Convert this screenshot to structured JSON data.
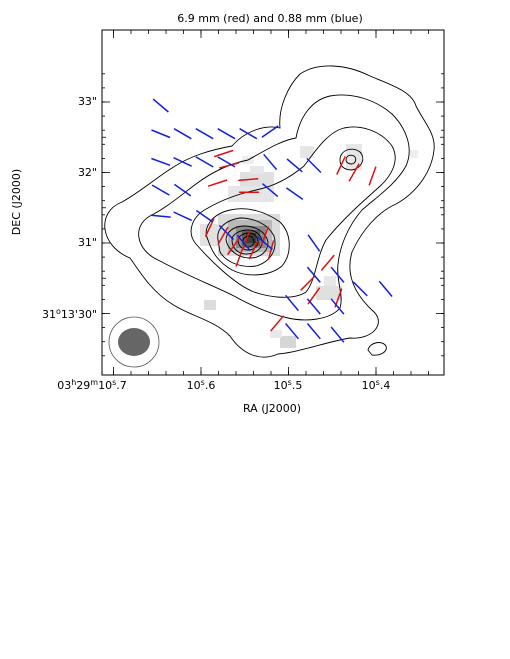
{
  "chart_data": {
    "type": "scatter",
    "title": "6.9 mm (red) and 0.88 mm (blue)",
    "xlabel": "RA (J2000)",
    "ylabel": "DEC (J2000)",
    "x_ticks": [
      {
        "label": "03h29m10s.7",
        "parts": [
          "03",
          "h",
          "29",
          "m",
          "10",
          "s",
          ".7"
        ]
      },
      {
        "label": "10s.6",
        "parts": [
          "10",
          "s",
          ".6"
        ]
      },
      {
        "label": "10s.5",
        "parts": [
          "10",
          "s",
          ".5"
        ]
      },
      {
        "label": "10s.4",
        "parts": [
          "10",
          "s",
          ".4"
        ]
      }
    ],
    "y_ticks": [
      {
        "label": "31°13'30\"",
        "parts": [
          "31",
          "o",
          "13'30\""
        ]
      },
      {
        "label": "31\"",
        "parts": [
          "31\""
        ]
      },
      {
        "label": "32\"",
        "parts": [
          "32\""
        ]
      },
      {
        "label": "33\"",
        "parts": [
          "33\""
        ]
      }
    ],
    "colors": {
      "red": "#e01010",
      "blue": "#1020e0",
      "contour": "#000000",
      "beam": "#666666"
    },
    "red_vectors": [
      {
        "ra": 10.574,
        "dec": 32.27,
        "pa": 72
      },
      {
        "ra": 10.568,
        "dec": 32.1,
        "pa": 75
      },
      {
        "ra": 10.546,
        "dec": 31.9,
        "pa": 85
      },
      {
        "ra": 10.581,
        "dec": 31.85,
        "pa": 72
      },
      {
        "ra": 10.545,
        "dec": 31.72,
        "pa": 90
      },
      {
        "ra": 10.59,
        "dec": 31.22,
        "pa": 25
      },
      {
        "ra": 10.575,
        "dec": 31.1,
        "pa": 30
      },
      {
        "ra": 10.563,
        "dec": 30.95,
        "pa": 35
      },
      {
        "ra": 10.548,
        "dec": 31.05,
        "pa": 20
      },
      {
        "ra": 10.54,
        "dec": 30.9,
        "pa": 25
      },
      {
        "ra": 10.556,
        "dec": 30.8,
        "pa": 20
      },
      {
        "ra": 10.527,
        "dec": 31.1,
        "pa": 20
      },
      {
        "ra": 10.52,
        "dec": 30.9,
        "pa": 15
      },
      {
        "ra": 10.44,
        "dec": 32.1,
        "pa": 25
      },
      {
        "ra": 10.425,
        "dec": 32.0,
        "pa": 30
      },
      {
        "ra": 10.404,
        "dec": 31.95,
        "pa": 20
      },
      {
        "ra": 10.455,
        "dec": 30.72,
        "pa": 40
      },
      {
        "ra": 10.478,
        "dec": 30.43,
        "pa": 45
      },
      {
        "ra": 10.471,
        "dec": 30.25,
        "pa": 35
      },
      {
        "ra": 10.443,
        "dec": 30.22,
        "pa": 20
      },
      {
        "ra": 10.513,
        "dec": 29.86,
        "pa": 40
      }
    ],
    "blue_vectors": [
      {
        "ra": 10.646,
        "dec": 32.95,
        "pa": 130
      },
      {
        "ra": 10.646,
        "dec": 32.55,
        "pa": 112
      },
      {
        "ra": 10.621,
        "dec": 32.55,
        "pa": 120
      },
      {
        "ra": 10.596,
        "dec": 32.55,
        "pa": 120
      },
      {
        "ra": 10.571,
        "dec": 32.55,
        "pa": 120
      },
      {
        "ra": 10.546,
        "dec": 32.55,
        "pa": 120
      },
      {
        "ra": 10.521,
        "dec": 32.58,
        "pa": 55
      },
      {
        "ra": 10.646,
        "dec": 32.15,
        "pa": 110
      },
      {
        "ra": 10.621,
        "dec": 32.15,
        "pa": 115
      },
      {
        "ra": 10.596,
        "dec": 32.15,
        "pa": 120
      },
      {
        "ra": 10.571,
        "dec": 32.15,
        "pa": 120
      },
      {
        "ra": 10.521,
        "dec": 32.15,
        "pa": 140
      },
      {
        "ra": 10.493,
        "dec": 32.1,
        "pa": 130
      },
      {
        "ra": 10.471,
        "dec": 32.1,
        "pa": 135
      },
      {
        "ra": 10.646,
        "dec": 31.75,
        "pa": 120
      },
      {
        "ra": 10.621,
        "dec": 31.75,
        "pa": 125
      },
      {
        "ra": 10.521,
        "dec": 31.75,
        "pa": 130
      },
      {
        "ra": 10.493,
        "dec": 31.7,
        "pa": 125
      },
      {
        "ra": 10.646,
        "dec": 31.38,
        "pa": 95
      },
      {
        "ra": 10.621,
        "dec": 31.38,
        "pa": 115
      },
      {
        "ra": 10.596,
        "dec": 31.38,
        "pa": 125
      },
      {
        "ra": 10.571,
        "dec": 31.15,
        "pa": 135
      },
      {
        "ra": 10.551,
        "dec": 31.0,
        "pa": 140
      },
      {
        "ra": 10.527,
        "dec": 31.0,
        "pa": 130
      },
      {
        "ra": 10.471,
        "dec": 31.0,
        "pa": 145
      },
      {
        "ra": 10.471,
        "dec": 30.55,
        "pa": 140
      },
      {
        "ra": 10.444,
        "dec": 30.55,
        "pa": 140
      },
      {
        "ra": 10.418,
        "dec": 30.35,
        "pa": 135
      },
      {
        "ra": 10.389,
        "dec": 30.35,
        "pa": 140
      },
      {
        "ra": 10.496,
        "dec": 30.15,
        "pa": 140
      },
      {
        "ra": 10.471,
        "dec": 30.1,
        "pa": 140
      },
      {
        "ra": 10.444,
        "dec": 30.1,
        "pa": 140
      },
      {
        "ra": 10.496,
        "dec": 29.75,
        "pa": 140
      },
      {
        "ra": 10.471,
        "dec": 29.75,
        "pa": 140
      },
      {
        "ra": 10.444,
        "dec": 29.7,
        "pa": 140
      }
    ]
  }
}
